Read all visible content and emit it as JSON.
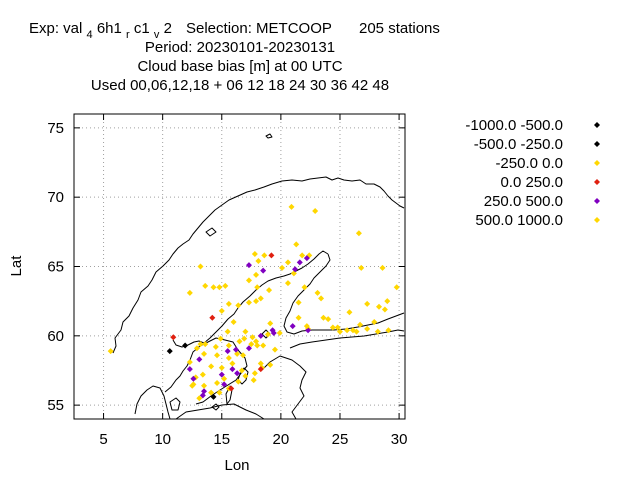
{
  "chart_data": {
    "type": "scatter",
    "title_lines": [
      "Exp: val 4 6h1 r c1 v 2   Selection: METCOOP    205 stations",
      "Period: 20230101-20230131",
      "Cloud base bias [m] at  00 UTC",
      "Used  00,06,12,18  + 06 12 18 24 30 36 42 48"
    ],
    "title": {
      "exp_prefix": "Exp: val",
      "exp_sub1": "4",
      "exp_mid1": "6h1",
      "exp_sub2": "r",
      "exp_mid2": "c1",
      "exp_sub3": "v",
      "exp_mid3": "2",
      "selection": "Selection: METCOOP",
      "stations": "205 stations",
      "period": "Period: 20230101-20230131",
      "quantity": "Cloud base bias [m] at  00 UTC",
      "used": "Used  00,06,12,18  + 06 12 18 24 30 36 42 48"
    },
    "xlabel": "Lon",
    "ylabel": "Lat",
    "xlim": [
      2.5,
      30.5
    ],
    "ylim": [
      54,
      76
    ],
    "xticks": [
      5,
      10,
      15,
      20,
      25,
      30
    ],
    "yticks": [
      55,
      60,
      65,
      70,
      75
    ],
    "grid": true,
    "legend_position": "right",
    "series": [
      {
        "name": "-1000.0 -500.0",
        "color": "#000000",
        "points": []
      },
      {
        "name": "-500.0 -250.0",
        "color": "#000000",
        "points": [
          [
            11.9,
            59.3
          ],
          [
            10.6,
            58.9
          ],
          [
            14.3,
            55.6
          ]
        ]
      },
      {
        "name": "-250.0 0.0",
        "color": "#ffd700",
        "points": [
          [
            5.6,
            58.9
          ],
          [
            12.3,
            63.1
          ],
          [
            13.6,
            63.6
          ],
          [
            14.3,
            63.5
          ],
          [
            14.8,
            63.5
          ],
          [
            15.3,
            63.6
          ],
          [
            15.0,
            61.8
          ],
          [
            15.5,
            60.3
          ],
          [
            16.0,
            61.0
          ],
          [
            16.4,
            62.2
          ],
          [
            17.3,
            62.4
          ],
          [
            17.9,
            62.5
          ],
          [
            18.3,
            62.7
          ],
          [
            18.0,
            63.5
          ],
          [
            17.3,
            64.0
          ],
          [
            17.9,
            64.4
          ],
          [
            18.1,
            65.4
          ],
          [
            17.8,
            65.9
          ],
          [
            18.6,
            65.8
          ],
          [
            20.1,
            64.9
          ],
          [
            20.6,
            65.3
          ],
          [
            21.1,
            64.5
          ],
          [
            21.3,
            66.6
          ],
          [
            21.8,
            65.8
          ],
          [
            22.4,
            65.8
          ],
          [
            22.0,
            63.5
          ],
          [
            21.5,
            62.4
          ],
          [
            21.5,
            61.3
          ],
          [
            22.3,
            60.5
          ],
          [
            23.1,
            63.1
          ],
          [
            23.4,
            62.7
          ],
          [
            23.6,
            61.3
          ],
          [
            24.0,
            61.2
          ],
          [
            24.4,
            60.6
          ],
          [
            24.8,
            60.6
          ],
          [
            25.0,
            60.3
          ],
          [
            25.6,
            60.4
          ],
          [
            25.8,
            61.7
          ],
          [
            26.4,
            60.3
          ],
          [
            26.7,
            60.8
          ],
          [
            27.3,
            60.5
          ],
          [
            27.9,
            61.0
          ],
          [
            28.2,
            60.3
          ],
          [
            28.3,
            62.1
          ],
          [
            28.8,
            61.9
          ],
          [
            28.6,
            64.9
          ],
          [
            29.8,
            63.5
          ],
          [
            26.6,
            67.4
          ],
          [
            22.9,
            69.0
          ],
          [
            20.9,
            69.3
          ],
          [
            20.6,
            63.8
          ],
          [
            19.0,
            63.3
          ],
          [
            19.1,
            60.9
          ],
          [
            19.9,
            60.2
          ],
          [
            18.9,
            60.1
          ],
          [
            17.6,
            59.9
          ],
          [
            17.9,
            59.6
          ],
          [
            18.0,
            59.3
          ],
          [
            17.5,
            59.4
          ],
          [
            16.5,
            59.6
          ],
          [
            16.9,
            59.8
          ],
          [
            15.6,
            59.3
          ],
          [
            14.5,
            59.2
          ],
          [
            13.6,
            59.4
          ],
          [
            13.2,
            59.4
          ],
          [
            12.9,
            59.1
          ],
          [
            12.3,
            58.1
          ],
          [
            13.5,
            58.7
          ],
          [
            14.6,
            58.6
          ],
          [
            15.6,
            58.4
          ],
          [
            16.3,
            58.7
          ],
          [
            16.8,
            58.6
          ],
          [
            14.1,
            57.8
          ],
          [
            15.0,
            57.7
          ],
          [
            15.9,
            58.0
          ],
          [
            16.7,
            57.5
          ],
          [
            13.4,
            57.2
          ],
          [
            12.8,
            57.0
          ],
          [
            12.6,
            56.5
          ],
          [
            13.5,
            56.4
          ],
          [
            14.6,
            56.6
          ],
          [
            15.2,
            56.9
          ],
          [
            15.6,
            56.2
          ],
          [
            14.8,
            55.9
          ],
          [
            14.1,
            55.9
          ],
          [
            13.1,
            55.5
          ],
          [
            12.5,
            56.4
          ],
          [
            16.4,
            56.7
          ],
          [
            17.7,
            56.8
          ],
          [
            17.8,
            57.3
          ],
          [
            18.4,
            57.7
          ],
          [
            19.1,
            57.9
          ],
          [
            18.3,
            58.0
          ],
          [
            17.0,
            57.1
          ],
          [
            14.9,
            59.8
          ],
          [
            15.6,
            62.3
          ],
          [
            17.0,
            60.3
          ],
          [
            18.5,
            59.3
          ],
          [
            19.5,
            59.0
          ],
          [
            13.2,
            65.0
          ]
        ]
      },
      {
        "name": "0.0 250.0",
        "color": "#e02010",
        "points": [
          [
            10.9,
            59.9
          ],
          [
            14.2,
            61.3
          ],
          [
            15.8,
            56.2
          ],
          [
            18.3,
            57.6
          ],
          [
            19.2,
            65.8
          ]
        ]
      },
      {
        "name": "250.0 500.0",
        "color": "#8000c0",
        "points": [
          [
            17.3,
            65.1
          ],
          [
            18.5,
            64.7
          ],
          [
            21.2,
            64.8
          ],
          [
            21.6,
            65.3
          ],
          [
            22.2,
            65.6
          ],
          [
            21.0,
            60.7
          ],
          [
            19.3,
            60.4
          ],
          [
            19.4,
            60.2
          ],
          [
            16.2,
            59.0
          ],
          [
            15.9,
            57.6
          ],
          [
            15.0,
            57.2
          ],
          [
            15.2,
            56.5
          ],
          [
            13.5,
            56.0
          ],
          [
            13.4,
            55.7
          ],
          [
            12.6,
            56.9
          ],
          [
            12.3,
            57.6
          ],
          [
            13.1,
            58.3
          ],
          [
            15.5,
            58.9
          ],
          [
            16.3,
            57.3
          ],
          [
            17.3,
            59.1
          ],
          [
            18.3,
            60.0
          ],
          [
            22.3,
            60.4
          ]
        ]
      },
      {
        "name": "500.0 1000.0",
        "color": "#ffd700",
        "points": [
          [
            22.2,
            60.7
          ],
          [
            26.1,
            60.4
          ],
          [
            29.1,
            60.4
          ],
          [
            26.8,
            64.9
          ],
          [
            27.3,
            62.3
          ],
          [
            29.0,
            62.5
          ]
        ]
      }
    ]
  }
}
